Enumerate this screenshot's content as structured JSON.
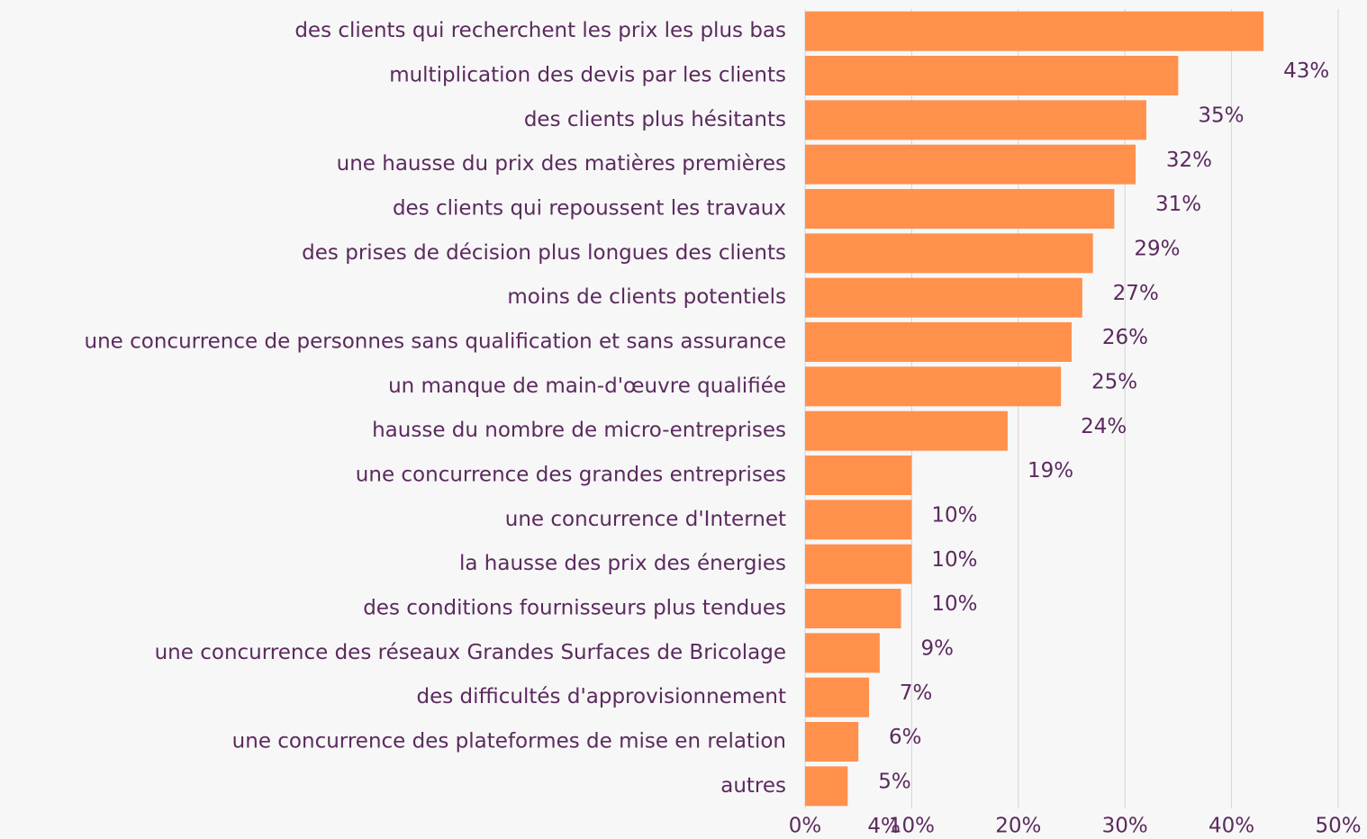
{
  "chart_data": {
    "type": "bar",
    "orientation": "horizontal",
    "categories": [
      "des clients qui recherchent les prix les plus bas",
      "multiplication des devis par les clients",
      "des clients plus hésitants",
      "une hausse du prix des matières premières",
      "des clients qui repoussent les travaux",
      "des prises de décision plus longues des clients",
      "moins de clients potentiels",
      "une concurrence de personnes sans qualification et sans assurance",
      "un manque de main-d'œuvre qualifiée",
      "hausse du nombre de micro-entreprises",
      "une concurrence des grandes entreprises",
      "une concurrence d'Internet",
      "la hausse des prix des énergies",
      "des conditions fournisseurs plus tendues",
      "une concurrence des réseaux Grandes Surfaces de Bricolage",
      "des difficultés d'approvisionnement",
      "une concurrence des plateformes de mise en relation",
      "autres"
    ],
    "values": [
      43,
      35,
      32,
      31,
      29,
      27,
      26,
      25,
      24,
      19,
      10,
      10,
      10,
      9,
      7,
      6,
      5,
      4
    ],
    "value_labels": [
      "43%",
      "35%",
      "32%",
      "31%",
      "29%",
      "27%",
      "26%",
      "25%",
      "24%",
      "19%",
      "10%",
      "10%",
      "10%",
      "9%",
      "7%",
      "6%",
      "5%",
      "4%"
    ],
    "color": "#ff914d",
    "xlim": [
      0,
      50
    ],
    "xticks": [
      {
        "value": 0,
        "label": "0%"
      },
      {
        "value": 10,
        "label": "10%"
      },
      {
        "value": 20,
        "label": "20%"
      },
      {
        "value": 30,
        "label": "30%"
      },
      {
        "value": 40,
        "label": "40%"
      },
      {
        "value": 50,
        "label": "50%"
      }
    ],
    "grid": true
  }
}
